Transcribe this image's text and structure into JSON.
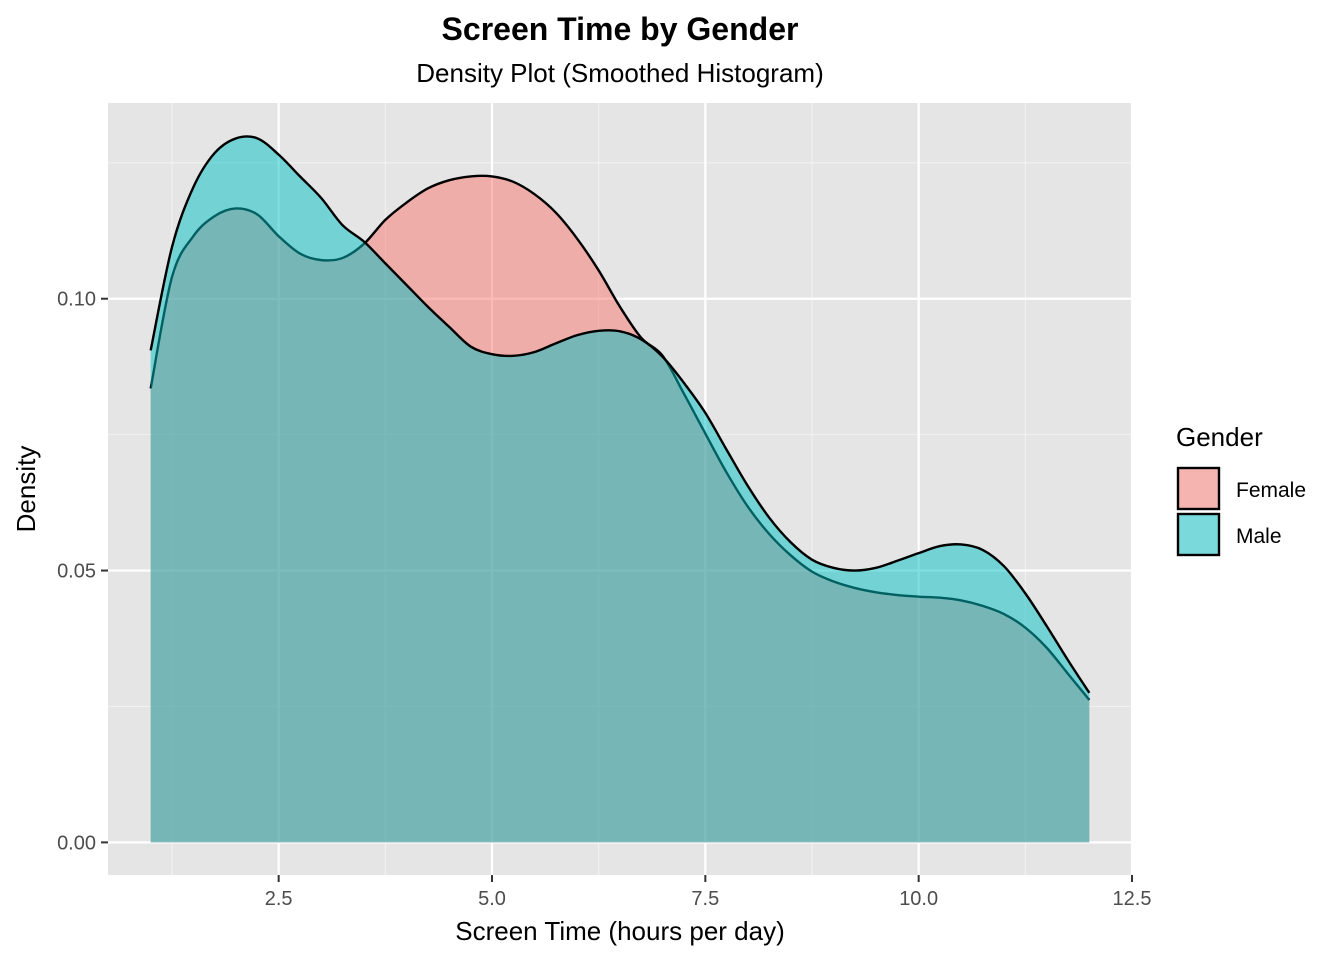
{
  "chart_data": {
    "type": "area",
    "title": "Screen Time by Gender",
    "subtitle": "Density Plot (Smoothed Histogram)",
    "xlabel": "Screen Time (hours per day)",
    "ylabel": "Density",
    "xlim": [
      0.5,
      12.5
    ],
    "ylim": [
      -0.006,
      0.136
    ],
    "x_ticks": [
      2.5,
      5.0,
      7.5,
      10.0,
      12.5
    ],
    "x_tick_labels": [
      "2.5",
      "5.0",
      "7.5",
      "10.0",
      "12.5"
    ],
    "y_ticks": [
      0.0,
      0.05,
      0.1
    ],
    "y_tick_labels": [
      "0.00",
      "0.05",
      "0.10"
    ],
    "grid": true,
    "legend": {
      "title": "Gender",
      "position": "right"
    },
    "series": [
      {
        "name": "Female",
        "color": "#F8766D",
        "points": [
          [
            1.0,
            0.0835
          ],
          [
            1.25,
            0.104
          ],
          [
            1.5,
            0.1115
          ],
          [
            1.75,
            0.1152
          ],
          [
            2.0,
            0.1166
          ],
          [
            2.25,
            0.1155
          ],
          [
            2.5,
            0.1115
          ],
          [
            2.75,
            0.1083
          ],
          [
            3.0,
            0.1071
          ],
          [
            3.25,
            0.1075
          ],
          [
            3.5,
            0.1101
          ],
          [
            3.75,
            0.1145
          ],
          [
            4.0,
            0.1177
          ],
          [
            4.25,
            0.1203
          ],
          [
            4.5,
            0.1218
          ],
          [
            4.75,
            0.1225
          ],
          [
            5.0,
            0.1225
          ],
          [
            5.25,
            0.1215
          ],
          [
            5.5,
            0.1192
          ],
          [
            5.75,
            0.1158
          ],
          [
            6.0,
            0.111
          ],
          [
            6.25,
            0.1052
          ],
          [
            6.5,
            0.0985
          ],
          [
            6.75,
            0.0928
          ],
          [
            7.0,
            0.0895
          ],
          [
            7.25,
            0.0825
          ],
          [
            7.5,
            0.0752
          ],
          [
            7.75,
            0.068
          ],
          [
            8.0,
            0.0617
          ],
          [
            8.25,
            0.0567
          ],
          [
            8.5,
            0.0528
          ],
          [
            8.75,
            0.0498
          ],
          [
            9.0,
            0.048
          ],
          [
            9.25,
            0.0468
          ],
          [
            9.5,
            0.046
          ],
          [
            9.75,
            0.0455
          ],
          [
            10.0,
            0.0452
          ],
          [
            10.25,
            0.045
          ],
          [
            10.5,
            0.0445
          ],
          [
            10.75,
            0.0435
          ],
          [
            11.0,
            0.042
          ],
          [
            11.25,
            0.0395
          ],
          [
            11.5,
            0.0358
          ],
          [
            11.75,
            0.031
          ],
          [
            12.0,
            0.0262
          ]
        ]
      },
      {
        "name": "Male",
        "color": "#00BFC4",
        "points": [
          [
            1.0,
            0.0905
          ],
          [
            1.25,
            0.1095
          ],
          [
            1.5,
            0.1205
          ],
          [
            1.75,
            0.1268
          ],
          [
            2.0,
            0.1295
          ],
          [
            2.25,
            0.1295
          ],
          [
            2.5,
            0.1265
          ],
          [
            2.75,
            0.1225
          ],
          [
            3.0,
            0.1185
          ],
          [
            3.25,
            0.1135
          ],
          [
            3.5,
            0.1105
          ],
          [
            3.75,
            0.1065
          ],
          [
            4.0,
            0.1025
          ],
          [
            4.25,
            0.0985
          ],
          [
            4.5,
            0.0948
          ],
          [
            4.75,
            0.0912
          ],
          [
            5.0,
            0.0898
          ],
          [
            5.25,
            0.0895
          ],
          [
            5.5,
            0.0902
          ],
          [
            5.75,
            0.0918
          ],
          [
            6.0,
            0.0933
          ],
          [
            6.25,
            0.0941
          ],
          [
            6.5,
            0.094
          ],
          [
            6.75,
            0.0925
          ],
          [
            7.0,
            0.0893
          ],
          [
            7.25,
            0.0845
          ],
          [
            7.5,
            0.079
          ],
          [
            7.75,
            0.0722
          ],
          [
            8.0,
            0.0655
          ],
          [
            8.25,
            0.0597
          ],
          [
            8.5,
            0.0552
          ],
          [
            8.75,
            0.052
          ],
          [
            9.0,
            0.0505
          ],
          [
            9.25,
            0.05
          ],
          [
            9.5,
            0.0505
          ],
          [
            9.75,
            0.0518
          ],
          [
            10.0,
            0.0532
          ],
          [
            10.25,
            0.0545
          ],
          [
            10.5,
            0.0548
          ],
          [
            10.75,
            0.0538
          ],
          [
            11.0,
            0.0508
          ],
          [
            11.25,
            0.0458
          ],
          [
            11.5,
            0.0398
          ],
          [
            11.75,
            0.0335
          ],
          [
            12.0,
            0.0275
          ]
        ]
      }
    ]
  }
}
